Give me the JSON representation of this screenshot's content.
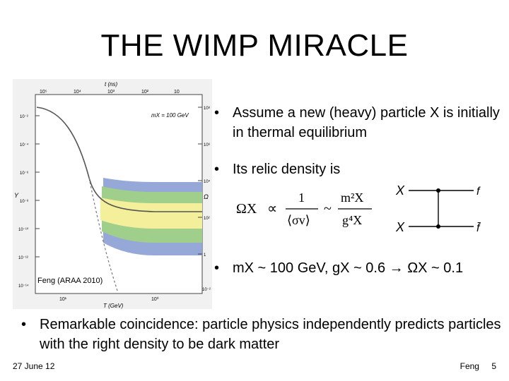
{
  "slide": {
    "title": "THE WIMP MIRACLE",
    "figure_caption": "Feng (ARAA 2010)",
    "bullets": [
      {
        "dot": "•",
        "text": "Assume a new (heavy) particle X is initially in thermal equilibrium"
      },
      {
        "dot": "•",
        "text": "Its relic density is"
      },
      {
        "dot": "•",
        "text": "mX ~ 100 GeV, gX ~ 0.6 → ΩX ~ 0.1"
      },
      {
        "dot": "•",
        "text": "Remarkable coincidence: particle physics independently predicts particles with the right density to be dark matter"
      }
    ],
    "footer": {
      "date": "27 June 12",
      "author": "Feng",
      "page": "5"
    }
  },
  "figure": {
    "top_axis_label": "t (ns)",
    "top_ticks": [
      "10⁵",
      "10⁴",
      "10³",
      "10²",
      "10"
    ],
    "left_axis_label": "Y",
    "left_ticks": [
      "10⁻²",
      "10⁻⁴",
      "10⁻⁶",
      "10⁻⁸",
      "10⁻¹⁰",
      "10⁻¹²",
      "10⁻¹⁴"
    ],
    "right_axis_label": "Ω",
    "right_ticks": [
      "10⁸",
      "10⁶",
      "10⁴",
      "10²",
      "1",
      "10⁻²"
    ],
    "bottom_axis_label": "T (GeV)",
    "bottom_ticks": [
      "10¹",
      "10⁰"
    ],
    "mass_label": "mX = 100 GeV",
    "colors": {
      "blue": "#8fa3d6",
      "green": "#9fcf8a",
      "yellow": "#f3ef9a",
      "panel": "#f1f1f1"
    }
  },
  "formula": {
    "omega": "ΩX",
    "prop": "∝",
    "numerator": "1",
    "denominator": "⟨σv⟩",
    "sim": "~",
    "num2": "m²X",
    "den2": "g⁴X"
  },
  "feynman": {
    "in1": "X",
    "in2": "X",
    "out1": "f",
    "out2": "f̄"
  }
}
